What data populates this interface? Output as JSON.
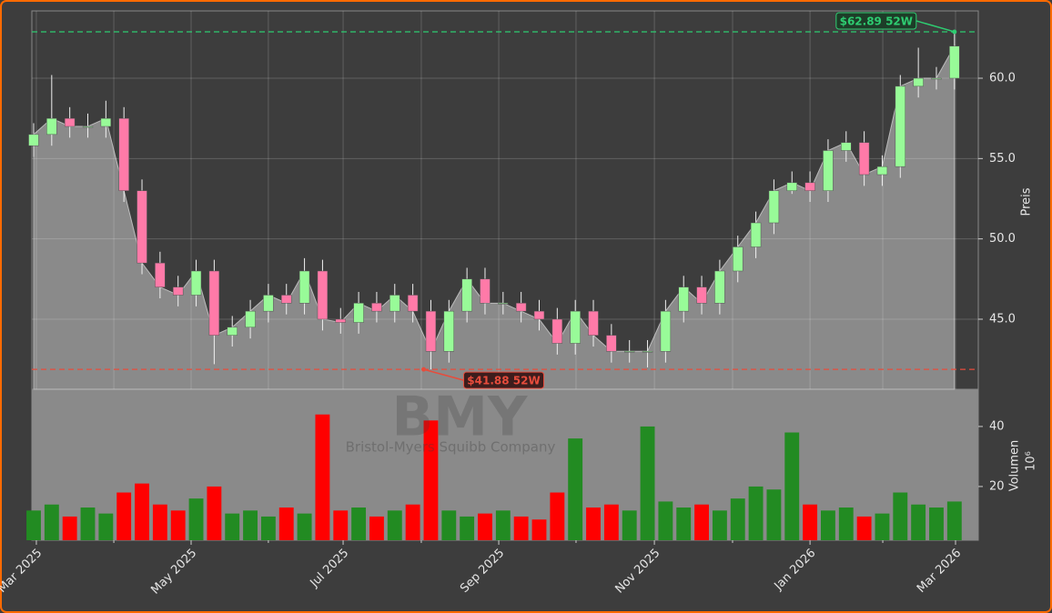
{
  "chart_data": {
    "type": "candlestick",
    "watermark": "BMY",
    "watermark_subtitle": "Bristol-Myers Squibb Company",
    "y_label": "Preis",
    "y2_label": "Volumen",
    "y2_offset_label": "10⁶",
    "x": [
      0,
      1,
      2,
      3,
      4,
      5,
      6,
      7,
      8,
      9,
      10,
      11,
      12,
      13,
      14,
      15,
      16,
      17,
      18,
      19,
      20,
      21,
      22,
      23,
      24,
      25,
      26,
      27,
      28,
      29,
      30,
      31,
      32,
      33,
      34,
      35,
      36,
      37,
      38,
      39,
      40,
      41,
      42,
      43,
      44,
      45,
      46,
      47,
      48,
      49,
      50,
      51
    ],
    "open": [
      55.8,
      56.5,
      57.5,
      57,
      57,
      57.5,
      53,
      48.5,
      47,
      46.5,
      48,
      44,
      44.5,
      45.5,
      46.5,
      46,
      48,
      45,
      44.8,
      46,
      45.5,
      46.5,
      45.5,
      43,
      45.5,
      47.5,
      46,
      46,
      45.5,
      45,
      43.5,
      45.5,
      44,
      43,
      43,
      43,
      45.5,
      47,
      46,
      48,
      49.5,
      51,
      53,
      53.5,
      53,
      55.5,
      56,
      54,
      54.5,
      59.5,
      60,
      60
    ],
    "high": [
      57.2,
      60.2,
      58.2,
      57.8,
      58.6,
      58.2,
      53.7,
      49.2,
      47.7,
      48.7,
      48.7,
      45.2,
      46.2,
      47.2,
      47.2,
      48.8,
      48.7,
      45.7,
      46.7,
      46.7,
      47.2,
      47.2,
      46.2,
      46.2,
      48.2,
      48.2,
      46.7,
      46.7,
      46.2,
      45.7,
      46.2,
      46.2,
      44.7,
      43.7,
      43.7,
      46.2,
      47.7,
      47.7,
      48.7,
      50.2,
      51.7,
      53.7,
      54.2,
      54.2,
      56.2,
      56.7,
      56.7,
      55.2,
      60.2,
      61.9,
      60.7,
      62.89
    ],
    "low": [
      55.1,
      55.8,
      56.3,
      56.3,
      56.3,
      52.3,
      47.8,
      46.3,
      45.8,
      45.8,
      42.2,
      43.3,
      43.8,
      44.8,
      45.3,
      45.3,
      44.3,
      44.1,
      44.1,
      44.8,
      44.8,
      44.8,
      41.88,
      42.3,
      44.8,
      45.3,
      45.3,
      44.8,
      44.3,
      42.8,
      42.8,
      43.3,
      42.3,
      42.3,
      42.0,
      42.3,
      44.8,
      45.3,
      45.3,
      47.3,
      48.8,
      50.3,
      52.8,
      52.3,
      52.3,
      54.8,
      53.3,
      53.3,
      53.8,
      58.8,
      59.3,
      59.3
    ],
    "close": [
      56.5,
      57.5,
      57,
      57,
      57.5,
      53,
      48.5,
      47,
      46.5,
      48,
      44,
      44.5,
      45.5,
      46.5,
      46,
      48,
      45,
      44.8,
      46,
      45.5,
      46.5,
      45.5,
      43,
      45.5,
      47.5,
      46,
      46,
      45.5,
      45,
      43.5,
      45.5,
      44,
      43,
      43,
      43,
      45.5,
      47,
      46,
      48,
      49.5,
      51,
      53,
      53.5,
      53,
      55.5,
      56,
      54,
      54.5,
      59.5,
      60,
      60,
      62
    ],
    "volume": [
      12,
      14,
      10,
      13,
      11,
      18,
      21,
      14,
      12,
      16,
      20,
      11,
      12,
      10,
      13,
      11,
      44,
      12,
      13,
      10,
      12,
      14,
      42,
      12,
      10,
      11,
      12,
      10,
      9,
      18,
      36,
      13,
      14,
      12,
      40,
      15,
      13,
      14,
      12,
      16,
      20,
      19,
      38,
      14,
      12,
      13,
      10,
      11,
      18,
      14,
      13,
      15
    ],
    "up_color": "#98fb98",
    "down_color": "#ff7aa8",
    "volume_up_color": "#228b22",
    "volume_down_color": "#ff0000",
    "area_color": "#8a8a8a",
    "xlim": [
      -0.1,
      52.32
    ],
    "xticks": [
      {
        "value": 0.15,
        "label": "Mar 2025"
      },
      {
        "value": 8.72,
        "label": "May 2025"
      },
      {
        "value": 17.14,
        "label": "Jul 2025"
      },
      {
        "value": 25.76,
        "label": "Sep 2025"
      },
      {
        "value": 34.38,
        "label": "Nov 2025"
      },
      {
        "value": 43.0,
        "label": "Jan 2026"
      },
      {
        "value": 51.06,
        "label": "Mar 2026"
      }
    ],
    "xminorticks": [
      4.44,
      13.0,
      21.47,
      30.04,
      38.71,
      47.03
    ],
    "ylim": [
      40.64,
      64.19
    ],
    "yticks": [
      {
        "value": 45,
        "label": "45.0"
      },
      {
        "value": 50,
        "label": "50.0"
      },
      {
        "value": 55,
        "label": "55.0"
      },
      {
        "value": 60,
        "label": "60.0"
      }
    ],
    "y2lim": [
      2.1,
      52.4
    ],
    "y2ticks": [
      20,
      40
    ],
    "grid": true,
    "annotations": [
      {
        "text": "$62.89 52W",
        "value": 62.89,
        "x": 51,
        "color": "#2ecc71"
      },
      {
        "text": "$41.88 52W",
        "value": 41.88,
        "x": 21.6,
        "color": "#e74c3c"
      }
    ]
  }
}
